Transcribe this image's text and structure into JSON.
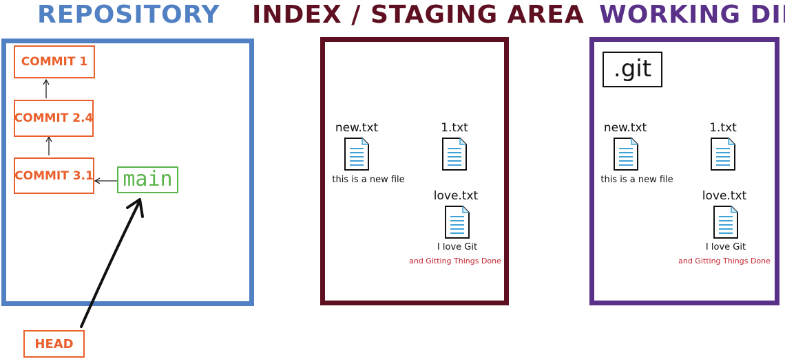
{
  "headings": {
    "repository": "REPOSITORY",
    "index": "INDEX / STAGING AREA",
    "working_dir": "WORKING DIR"
  },
  "colors": {
    "repository": "#5181c3",
    "index": "#5e1020",
    "working_dir": "#5a3188",
    "commit": "#ea5f2c",
    "branch": "#5ab44a",
    "file_lines": "#3fa3d6",
    "red_text": "#c4232e"
  },
  "repository": {
    "commits": [
      "COMMIT 1",
      "COMMIT 2.4",
      "COMMIT 3.1"
    ],
    "branch": "main",
    "head": "HEAD"
  },
  "index": {
    "files": [
      {
        "name": "new.txt",
        "icon": "text-file-icon",
        "content": [
          "this is a new file"
        ]
      },
      {
        "name": "1.txt",
        "icon": "text-file-icon",
        "content": []
      },
      {
        "name": "love.txt",
        "icon": "text-file-icon",
        "content": [
          "I love Git",
          "and Gitting Things Done"
        ]
      }
    ]
  },
  "working_dir": {
    "git_folder": ".git",
    "files": [
      {
        "name": "new.txt",
        "icon": "text-file-icon",
        "content": [
          "this is a new file"
        ]
      },
      {
        "name": "1.txt",
        "icon": "text-file-icon",
        "content": []
      },
      {
        "name": "love.txt",
        "icon": "text-file-icon",
        "content": [
          "I love Git",
          "and Gitting Things Done"
        ]
      }
    ]
  }
}
